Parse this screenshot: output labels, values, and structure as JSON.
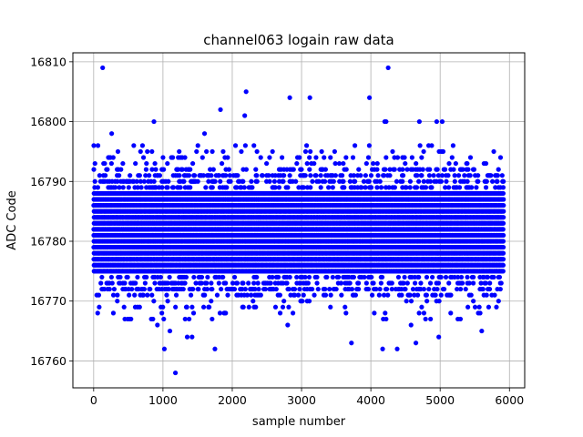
{
  "chart_data": {
    "type": "scatter",
    "title": "channel063 logain raw data",
    "xlabel": "sample number",
    "ylabel": "ADC Code",
    "xlim": [
      -300,
      6220
    ],
    "ylim": [
      16755.5,
      16811.5
    ],
    "xticks": [
      0,
      1000,
      2000,
      3000,
      4000,
      5000,
      6000
    ],
    "yticks": [
      16760,
      16770,
      16780,
      16790,
      16800,
      16810
    ],
    "grid": true,
    "marker_color": "#0000ff",
    "series": [
      {
        "points_note": "dense scatter of ~5920 integer ADC samples between ~16771 and ~16792 with outliers",
        "x_range": [
          0,
          5920
        ],
        "typical_range": [
          16771,
          16792
        ],
        "core_range": [
          16775,
          16788
        ],
        "outliers": [
          [
            130,
            16809
          ],
          [
            4250,
            16809
          ],
          [
            2200,
            16805
          ],
          [
            2830,
            16804
          ],
          [
            3120,
            16804
          ],
          [
            3980,
            16804
          ],
          [
            1830,
            16802
          ],
          [
            2180,
            16801
          ],
          [
            870,
            16800
          ],
          [
            4200,
            16800
          ],
          [
            4220,
            16800
          ],
          [
            4700,
            16800
          ],
          [
            4950,
            16800
          ],
          [
            5030,
            16800
          ],
          [
            260,
            16798
          ],
          [
            1600,
            16798
          ],
          [
            1180,
            16758
          ],
          [
            1020,
            16762
          ],
          [
            1750,
            16762
          ],
          [
            4170,
            16762
          ],
          [
            4380,
            16762
          ],
          [
            3720,
            16763
          ],
          [
            4650,
            16763
          ],
          [
            1350,
            16764
          ],
          [
            1420,
            16764
          ],
          [
            4980,
            16764
          ],
          [
            920,
            16766
          ],
          [
            2800,
            16766
          ],
          [
            4580,
            16766
          ],
          [
            1100,
            16765
          ],
          [
            5600,
            16765
          ],
          [
            1320,
            16767
          ],
          [
            4220,
            16767
          ],
          [
            450,
            16767
          ],
          [
            520,
            16767
          ],
          [
            2300,
            16770
          ],
          [
            80,
            16769
          ],
          [
            600,
            16769
          ],
          [
            5400,
            16769
          ],
          [
            5700,
            16769
          ]
        ]
      }
    ]
  }
}
